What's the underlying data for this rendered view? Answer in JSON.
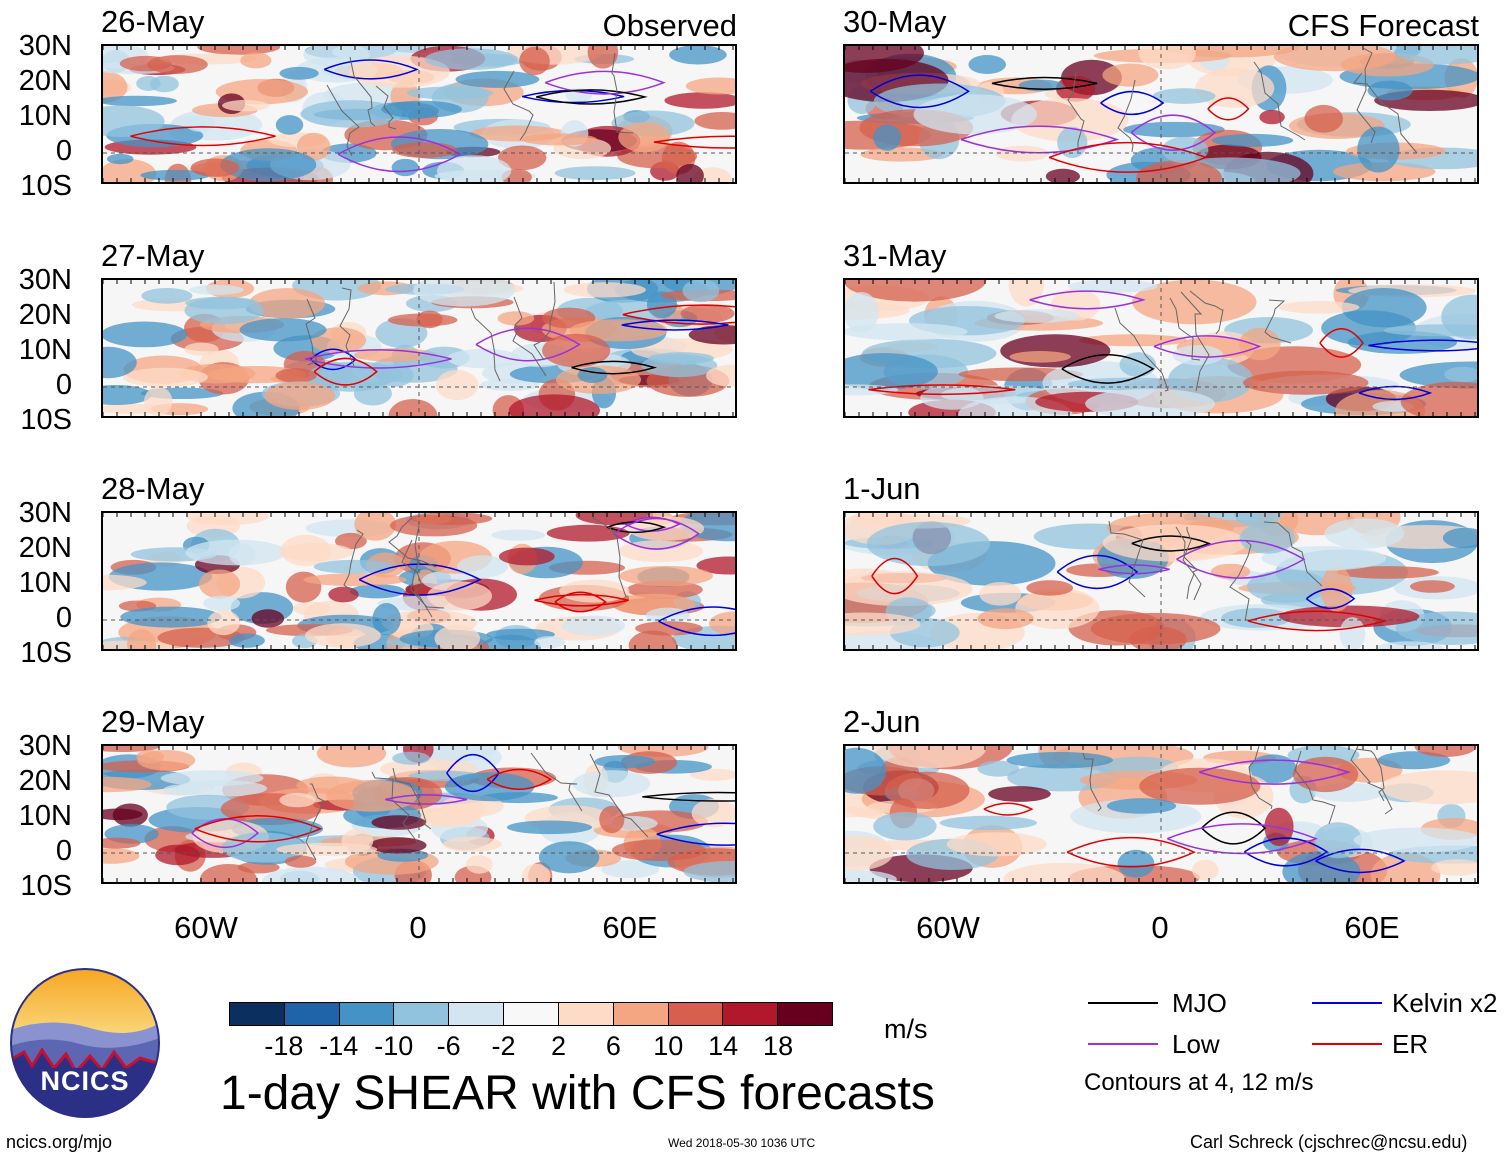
{
  "panels_observed": [
    {
      "date": "26-May",
      "corner": "Observed"
    },
    {
      "date": "27-May",
      "corner": ""
    },
    {
      "date": "28-May",
      "corner": ""
    },
    {
      "date": "29-May",
      "corner": ""
    }
  ],
  "panels_forecast": [
    {
      "date": "30-May",
      "corner": "CFS Forecast"
    },
    {
      "date": "31-May",
      "corner": ""
    },
    {
      "date": "1-Jun",
      "corner": ""
    },
    {
      "date": "2-Jun",
      "corner": ""
    }
  ],
  "lat_labels": [
    "30N",
    "20N",
    "10N",
    "0",
    "10S"
  ],
  "lon_labels": [
    "60W",
    "0",
    "60E"
  ],
  "colorbar": {
    "colors": [
      "#0b2f5e",
      "#1f64a8",
      "#4493c6",
      "#92c3de",
      "#d2e5f0",
      "#f8f8f8",
      "#fddbc7",
      "#f4a582",
      "#d6604d",
      "#b2182b",
      "#67001f"
    ],
    "labels": [
      "-18",
      "-14",
      "-10",
      "-6",
      "-2",
      "2",
      "6",
      "10",
      "14",
      "18"
    ],
    "units": "m/s"
  },
  "legend": {
    "items": [
      {
        "label": "MJO",
        "color": "#000000"
      },
      {
        "label": "Kelvin x2",
        "color": "#0000dd"
      },
      {
        "label": "Low",
        "color": "#9b30e0"
      },
      {
        "label": "ER",
        "color": "#e00000"
      }
    ],
    "contours_note": "Contours at 4, 12 m/s"
  },
  "title": "1-day SHEAR with CFS forecasts",
  "logo_text": "NCICS",
  "footer": {
    "site": "ncics.org/mjo",
    "timestamp": "Wed 2018-05-30 1036 UTC",
    "author": "Carl Schreck (cjschrec@ncsu.edu)"
  }
}
